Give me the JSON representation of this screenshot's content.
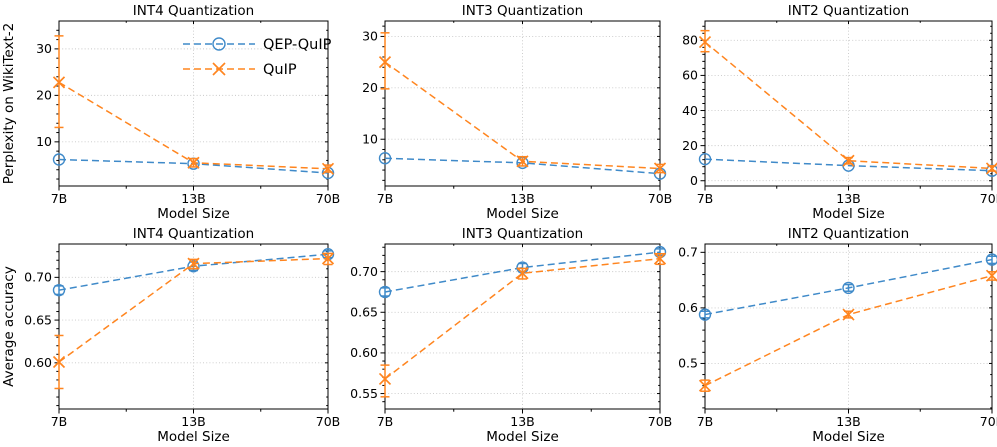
{
  "figure": {
    "background": "#ffffff",
    "grid_color": "#c8c8c8",
    "spine_color": "#000000",
    "text_color": "#000000",
    "series_colors": {
      "QEP-QuIP": "#3f8ac9",
      "QuIP": "#ff851f"
    }
  },
  "legend": {
    "position": "upper-right-of-first-plot",
    "items": [
      {
        "label": "QEP-QuIP",
        "marker": "circle",
        "color": "#3f8ac9"
      },
      {
        "label": "QuIP",
        "marker": "x",
        "color": "#ff851f"
      }
    ]
  },
  "chart_data": [
    {
      "type": "line",
      "title": "INT4 Quantization",
      "xlabel": "Model Size",
      "ylabel": "Perplexity on WikiText-2",
      "categories": [
        "7B",
        "13B",
        "70B"
      ],
      "ytick_values": [
        10,
        20,
        30
      ],
      "ytick_labels": [
        "10",
        "20",
        "30"
      ],
      "ylim": [
        0.5,
        36
      ],
      "grid": true,
      "legend": true,
      "series": [
        {
          "name": "QEP-QuIP",
          "marker": "circle",
          "values": [
            6.2,
            5.3,
            3.3
          ],
          "err": [
            null,
            null,
            null
          ]
        },
        {
          "name": "QuIP",
          "marker": "x",
          "values": [
            22.8,
            5.5,
            4.2
          ],
          "err": [
            [
              13.1,
              32.8
            ],
            [
              4.6,
              6.4
            ],
            [
              3.5,
              5.0
            ]
          ]
        }
      ]
    },
    {
      "type": "line",
      "title": "INT3 Quantization",
      "xlabel": "Model Size",
      "ylabel": "",
      "categories": [
        "7B",
        "13B",
        "70B"
      ],
      "ytick_values": [
        10,
        20,
        30
      ],
      "ytick_labels": [
        "10",
        "20",
        "30"
      ],
      "ylim": [
        0.9,
        33
      ],
      "grid": true,
      "legend": false,
      "series": [
        {
          "name": "QEP-QuIP",
          "marker": "circle",
          "values": [
            6.3,
            5.4,
            3.3
          ],
          "err": [
            null,
            null,
            null
          ]
        },
        {
          "name": "QuIP",
          "marker": "x",
          "values": [
            25.0,
            5.7,
            4.3
          ],
          "err": [
            [
              19.8,
              30.7
            ],
            [
              4.8,
              6.6
            ],
            [
              3.5,
              5.1
            ]
          ]
        }
      ]
    },
    {
      "type": "line",
      "title": "INT2 Quantization",
      "xlabel": "Model Size",
      "ylabel": "",
      "categories": [
        "7B",
        "13B",
        "70B"
      ],
      "ytick_values": [
        0,
        20,
        40,
        60,
        80
      ],
      "ytick_labels": [
        "0",
        "20",
        "40",
        "60",
        "80"
      ],
      "ylim": [
        -3,
        91
      ],
      "grid": true,
      "legend": false,
      "series": [
        {
          "name": "QEP-QuIP",
          "marker": "circle",
          "values": [
            12.3,
            8.6,
            5.7
          ],
          "err": [
            null,
            null,
            null
          ]
        },
        {
          "name": "QuIP",
          "marker": "x",
          "values": [
            79.0,
            11.4,
            7.0
          ],
          "err": [
            [
              73.5,
              85.5
            ],
            [
              9.6,
              13.2
            ],
            [
              5.5,
              8.5
            ]
          ]
        }
      ]
    },
    {
      "type": "line",
      "title": "INT4 Quantization",
      "xlabel": "Model Size",
      "ylabel": "Average accuracy",
      "categories": [
        "7B",
        "13B",
        "70B"
      ],
      "ytick_values": [
        0.6,
        0.65,
        0.7
      ],
      "ytick_labels": [
        "0.60",
        "0.65",
        "0.70"
      ],
      "ylim": [
        0.546,
        0.739
      ],
      "grid": true,
      "legend": false,
      "series": [
        {
          "name": "QEP-QuIP",
          "marker": "circle",
          "values": [
            0.685,
            0.713,
            0.727
          ],
          "err": [
            [
              0.68,
              0.69
            ],
            [
              0.708,
              0.718
            ],
            [
              0.723,
              0.731
            ]
          ]
        },
        {
          "name": "QuIP",
          "marker": "x",
          "values": [
            0.601,
            0.716,
            0.722
          ],
          "err": [
            [
              0.57,
              0.632
            ],
            [
              0.71,
              0.721
            ],
            [
              0.715,
              0.728
            ]
          ]
        }
      ]
    },
    {
      "type": "line",
      "title": "INT3 Quantization",
      "xlabel": "Model Size",
      "ylabel": "",
      "categories": [
        "7B",
        "13B",
        "70B"
      ],
      "ytick_values": [
        0.55,
        0.6,
        0.65,
        0.7
      ],
      "ytick_labels": [
        "0.55",
        "0.60",
        "0.65",
        "0.70"
      ],
      "ylim": [
        0.531,
        0.734
      ],
      "grid": true,
      "legend": false,
      "series": [
        {
          "name": "QEP-QuIP",
          "marker": "circle",
          "values": [
            0.675,
            0.705,
            0.724
          ],
          "err": [
            [
              0.67,
              0.68
            ],
            [
              0.7,
              0.71
            ],
            [
              0.72,
              0.728
            ]
          ]
        },
        {
          "name": "QuIP",
          "marker": "x",
          "values": [
            0.568,
            0.698,
            0.716
          ],
          "err": [
            [
              0.546,
              0.585
            ],
            [
              0.691,
              0.704
            ],
            [
              0.709,
              0.722
            ]
          ]
        }
      ]
    },
    {
      "type": "line",
      "title": "INT2 Quantization",
      "xlabel": "Model Size",
      "ylabel": "",
      "categories": [
        "7B",
        "13B",
        "70B"
      ],
      "ytick_values": [
        0.5,
        0.6,
        0.7
      ],
      "ytick_labels": [
        "0.5",
        "0.6",
        "0.7"
      ],
      "ylim": [
        0.418,
        0.715
      ],
      "grid": true,
      "legend": false,
      "series": [
        {
          "name": "QEP-QuIP",
          "marker": "circle",
          "values": [
            0.588,
            0.636,
            0.687
          ],
          "err": [
            [
              0.582,
              0.594
            ],
            [
              0.63,
              0.642
            ],
            [
              0.68,
              0.693
            ]
          ]
        },
        {
          "name": "QuIP",
          "marker": "x",
          "values": [
            0.46,
            0.588,
            0.658
          ],
          "err": [
            [
              0.45,
              0.47
            ],
            [
              0.582,
              0.594
            ],
            [
              0.65,
              0.665
            ]
          ]
        }
      ]
    }
  ]
}
